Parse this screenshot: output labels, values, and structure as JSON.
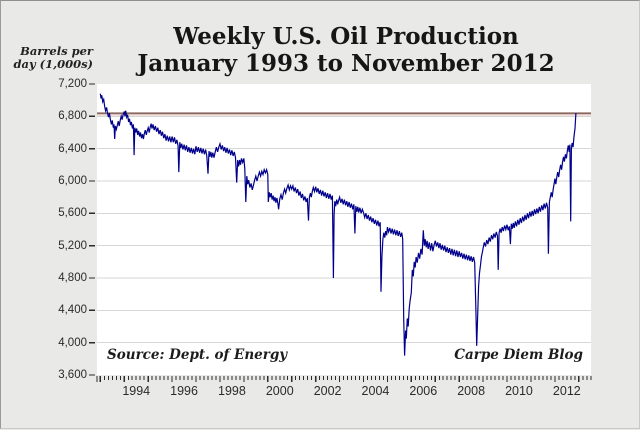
{
  "page": {
    "background": "#e9e9e7",
    "plot_background": "#ffffff"
  },
  "header": {
    "title_line1": "Weekly U.S. Oil Production",
    "title_line2": "January 1993 to November 2012"
  },
  "axis_unit_label": {
    "line1": "Barrels per",
    "line2": "day (1,000s)"
  },
  "footnotes": {
    "source": "Source: Dept. of Energy",
    "credit": "Carpe Diem Blog"
  },
  "chart_data": {
    "type": "line",
    "title": "Weekly U.S. Oil Production January 1993 to November 2012",
    "xlabel": "",
    "ylabel": "Barrels per day (1,000s)",
    "ylim": [
      3600,
      7200
    ],
    "xlim_years": [
      1992.86,
      2013.51
    ],
    "grid": true,
    "legend_position": "none",
    "line_color": "#00008b",
    "grid_color": "#d6d6d6",
    "tick_color": "#2b2b2b",
    "y_tick_values": [
      7200,
      6800,
      6400,
      6000,
      5600,
      5200,
      4800,
      4400,
      4000,
      3600
    ],
    "y_tick_labels": [
      "7,200",
      "6,800",
      "6,400",
      "6,000",
      "5,600",
      "5,200",
      "4,800",
      "4,400",
      "4,000",
      "3,600"
    ],
    "x_tick_years": [
      1994,
      1996,
      1998,
      2000,
      2002,
      2004,
      2006,
      2008,
      2010,
      2012
    ],
    "x_tick_labels": [
      "1994",
      "1996",
      "1998",
      "2000",
      "2002",
      "2004",
      "2006",
      "2008",
      "2010",
      "2012"
    ],
    "x_minor_ticks_per_year": 6,
    "reference_line": {
      "value": 6840,
      "color_dark": "#6f4a42",
      "color_light": "#dcc3bd"
    },
    "series": [
      {
        "name": "Weekly U.S. oil production (1,000s of barrels per day)",
        "points_flat": [
          1993.0,
          7080,
          1993.03,
          7020,
          1993.06,
          7060,
          1993.1,
          6980,
          1993.14,
          7010,
          1993.18,
          6920,
          1993.22,
          6870,
          1993.26,
          6910,
          1993.3,
          6840,
          1993.34,
          6790,
          1993.38,
          6840,
          1993.42,
          6760,
          1993.46,
          6700,
          1993.5,
          6750,
          1993.54,
          6660,
          1993.57,
          6700,
          1993.6,
          6520,
          1993.63,
          6680,
          1993.67,
          6640,
          1993.71,
          6690,
          1993.75,
          6740,
          1993.79,
          6680,
          1993.83,
          6750,
          1993.87,
          6800,
          1993.91,
          6760,
          1993.95,
          6820,
          1994.0,
          6860,
          1994.03,
          6800,
          1994.06,
          6870,
          1994.1,
          6790,
          1994.14,
          6820,
          1994.18,
          6730,
          1994.22,
          6770,
          1994.26,
          6690,
          1994.3,
          6730,
          1994.34,
          6650,
          1994.38,
          6700,
          1994.41,
          6320,
          1994.44,
          6660,
          1994.48,
          6600,
          1994.52,
          6650,
          1994.56,
          6570,
          1994.6,
          6620,
          1994.64,
          6550,
          1994.68,
          6600,
          1994.72,
          6530,
          1994.76,
          6580,
          1994.8,
          6520,
          1994.84,
          6590,
          1994.88,
          6630,
          1994.92,
          6570,
          1994.96,
          6620,
          1995.0,
          6660,
          1995.04,
          6600,
          1995.08,
          6660,
          1995.12,
          6710,
          1995.16,
          6650,
          1995.2,
          6700,
          1995.25,
          6630,
          1995.3,
          6680,
          1995.35,
          6610,
          1995.4,
          6660,
          1995.45,
          6580,
          1995.5,
          6630,
          1995.55,
          6560,
          1995.6,
          6610,
          1995.65,
          6530,
          1995.7,
          6580,
          1995.75,
          6500,
          1995.8,
          6560,
          1995.85,
          6490,
          1995.9,
          6550,
          1995.95,
          6480,
          1996.0,
          6550,
          1996.05,
          6480,
          1996.1,
          6540,
          1996.15,
          6460,
          1996.2,
          6510,
          1996.25,
          6430,
          1996.28,
          6110,
          1996.32,
          6480,
          1996.36,
          6410,
          1996.4,
          6460,
          1996.45,
          6390,
          1996.5,
          6450,
          1996.55,
          6380,
          1996.6,
          6440,
          1996.65,
          6360,
          1996.7,
          6420,
          1996.75,
          6350,
          1996.8,
          6410,
          1996.85,
          6340,
          1996.9,
          6400,
          1996.95,
          6330,
          1997.0,
          6430,
          1997.05,
          6360,
          1997.1,
          6420,
          1997.15,
          6350,
          1997.2,
          6410,
          1997.25,
          6340,
          1997.3,
          6400,
          1997.35,
          6330,
          1997.4,
          6390,
          1997.45,
          6310,
          1997.5,
          6090,
          1997.54,
          6370,
          1997.58,
          6300,
          1997.62,
          6360,
          1997.66,
          6290,
          1997.7,
          6350,
          1997.75,
          6290,
          1997.8,
          6360,
          1997.85,
          6420,
          1997.9,
          6360,
          1997.95,
          6420,
          1998.0,
          6460,
          1998.05,
          6390,
          1998.1,
          6440,
          1998.15,
          6370,
          1998.2,
          6420,
          1998.25,
          6350,
          1998.3,
          6410,
          1998.35,
          6340,
          1998.4,
          6390,
          1998.45,
          6320,
          1998.5,
          6380,
          1998.55,
          6310,
          1998.6,
          6360,
          1998.65,
          6290,
          1998.7,
          5980,
          1998.74,
          6260,
          1998.78,
          6180,
          1998.82,
          6260,
          1998.86,
          6200,
          1998.9,
          6280,
          1998.95,
          6230,
          1999.0,
          6280,
          1999.04,
          6150,
          1999.08,
          5740,
          1999.12,
          6060,
          1999.16,
          5960,
          1999.2,
          6010,
          1999.25,
          5920,
          1999.3,
          5970,
          1999.35,
          5890,
          1999.4,
          5950,
          1999.45,
          6010,
          1999.5,
          6060,
          1999.55,
          6000,
          1999.6,
          6060,
          1999.65,
          6110,
          1999.7,
          6060,
          1999.75,
          6120,
          1999.8,
          6080,
          1999.85,
          6140,
          1999.9,
          6100,
          1999.95,
          6140,
          2000.0,
          6080,
          2000.02,
          5740,
          2000.06,
          5860,
          2000.1,
          5800,
          2000.14,
          5850,
          2000.18,
          5770,
          2000.22,
          5820,
          2000.26,
          5750,
          2000.3,
          5800,
          2000.34,
          5730,
          2000.38,
          5790,
          2000.42,
          5720,
          2000.45,
          5650,
          2000.5,
          5780,
          2000.55,
          5830,
          2000.6,
          5770,
          2000.65,
          5850,
          2000.7,
          5900,
          2000.75,
          5850,
          2000.8,
          5910,
          2000.85,
          5950,
          2000.9,
          5890,
          2000.95,
          5940,
          2001.0,
          5900,
          2001.05,
          5940,
          2001.1,
          5870,
          2001.15,
          5920,
          2001.2,
          5850,
          2001.25,
          5900,
          2001.3,
          5820,
          2001.35,
          5870,
          2001.4,
          5790,
          2001.45,
          5840,
          2001.5,
          5760,
          2001.55,
          5810,
          2001.6,
          5740,
          2001.65,
          5790,
          2001.7,
          5510,
          2001.74,
          5800,
          2001.78,
          5850,
          2001.82,
          5800,
          2001.86,
          5870,
          2001.9,
          5920,
          2001.95,
          5870,
          2002.0,
          5930,
          2002.05,
          5860,
          2002.1,
          5910,
          2002.15,
          5840,
          2002.2,
          5890,
          2002.25,
          5820,
          2002.3,
          5880,
          2002.35,
          5810,
          2002.4,
          5860,
          2002.45,
          5790,
          2002.5,
          5850,
          2002.55,
          5780,
          2002.6,
          5840,
          2002.65,
          5770,
          2002.7,
          5820,
          2002.74,
          4800,
          2002.77,
          5580,
          2002.8,
          5750,
          2002.84,
          5690,
          2002.88,
          5770,
          2002.92,
          5710,
          2002.96,
          5760,
          2003.0,
          5800,
          2003.05,
          5730,
          2003.1,
          5780,
          2003.15,
          5710,
          2003.2,
          5770,
          2003.25,
          5700,
          2003.3,
          5750,
          2003.35,
          5680,
          2003.4,
          5740,
          2003.45,
          5670,
          2003.5,
          5720,
          2003.55,
          5650,
          2003.6,
          5710,
          2003.64,
          5350,
          2003.68,
          5690,
          2003.72,
          5620,
          2003.76,
          5680,
          2003.8,
          5610,
          2003.85,
          5670,
          2003.9,
          5600,
          2003.95,
          5650,
          2004.0,
          5610,
          2004.05,
          5550,
          2004.1,
          5600,
          2004.15,
          5530,
          2004.2,
          5580,
          2004.25,
          5510,
          2004.3,
          5560,
          2004.35,
          5490,
          2004.4,
          5540,
          2004.45,
          5470,
          2004.5,
          5520,
          2004.55,
          5450,
          2004.6,
          5510,
          2004.65,
          5440,
          2004.7,
          5490,
          2004.73,
          4630,
          2004.77,
          5060,
          2004.81,
          5280,
          2004.85,
          5360,
          2004.89,
          5300,
          2004.93,
          5380,
          2004.97,
          5330,
          2005.0,
          5430,
          2005.05,
          5370,
          2005.1,
          5420,
          2005.15,
          5350,
          2005.2,
          5410,
          2005.25,
          5340,
          2005.3,
          5400,
          2005.35,
          5330,
          2005.4,
          5390,
          2005.45,
          5320,
          2005.5,
          5380,
          2005.55,
          5310,
          2005.6,
          5360,
          2005.64,
          5280,
          2005.68,
          4300,
          2005.72,
          3840,
          2005.76,
          4150,
          2005.79,
          4050,
          2005.83,
          4300,
          2005.87,
          4200,
          2005.91,
          4420,
          2005.95,
          4520,
          2006.0,
          4620,
          2006.04,
          4900,
          2006.08,
          4820,
          2006.12,
          5000,
          2006.16,
          4930,
          2006.2,
          5060,
          2006.25,
          4990,
          2006.3,
          5110,
          2006.35,
          5040,
          2006.4,
          5160,
          2006.45,
          5090,
          2006.5,
          5390,
          2006.54,
          5200,
          2006.58,
          5280,
          2006.62,
          5180,
          2006.66,
          5260,
          2006.7,
          5160,
          2006.75,
          5240,
          2006.8,
          5140,
          2006.85,
          5230,
          2006.9,
          5130,
          2006.95,
          5210,
          2007.0,
          5260,
          2007.05,
          5190,
          2007.1,
          5240,
          2007.15,
          5170,
          2007.2,
          5230,
          2007.25,
          5150,
          2007.3,
          5210,
          2007.35,
          5140,
          2007.4,
          5200,
          2007.45,
          5120,
          2007.5,
          5180,
          2007.55,
          5110,
          2007.6,
          5170,
          2007.65,
          5090,
          2007.7,
          5160,
          2007.75,
          5080,
          2007.8,
          5150,
          2007.85,
          5070,
          2007.9,
          5140,
          2007.95,
          5060,
          2008.0,
          5130,
          2008.05,
          5060,
          2008.1,
          5110,
          2008.15,
          5040,
          2008.2,
          5100,
          2008.25,
          5030,
          2008.3,
          5090,
          2008.35,
          5020,
          2008.4,
          5080,
          2008.45,
          5010,
          2008.5,
          5070,
          2008.55,
          5000,
          2008.6,
          5060,
          2008.65,
          4990,
          2008.7,
          4400,
          2008.73,
          3960,
          2008.77,
          4310,
          2008.81,
          4700,
          2008.85,
          4860,
          2008.89,
          4960,
          2008.93,
          5060,
          2008.97,
          5120,
          2009.0,
          5170,
          2009.05,
          5240,
          2009.1,
          5190,
          2009.15,
          5270,
          2009.2,
          5220,
          2009.25,
          5300,
          2009.3,
          5250,
          2009.35,
          5330,
          2009.4,
          5280,
          2009.45,
          5350,
          2009.5,
          5300,
          2009.55,
          5370,
          2009.6,
          5320,
          2009.63,
          4900,
          2009.67,
          5360,
          2009.71,
          5410,
          2009.75,
          5360,
          2009.8,
          5430,
          2009.85,
          5380,
          2009.9,
          5450,
          2009.95,
          5400,
          2010.0,
          5460,
          2010.05,
          5390,
          2010.1,
          5440,
          2010.14,
          5220,
          2010.18,
          5470,
          2010.22,
          5410,
          2010.26,
          5480,
          2010.3,
          5420,
          2010.35,
          5500,
          2010.4,
          5440,
          2010.45,
          5520,
          2010.5,
          5460,
          2010.55,
          5540,
          2010.6,
          5480,
          2010.65,
          5560,
          2010.7,
          5500,
          2010.75,
          5580,
          2010.8,
          5520,
          2010.85,
          5600,
          2010.9,
          5540,
          2010.95,
          5620,
          2011.0,
          5560,
          2011.05,
          5630,
          2011.1,
          5570,
          2011.15,
          5650,
          2011.2,
          5590,
          2011.25,
          5660,
          2011.3,
          5600,
          2011.35,
          5680,
          2011.4,
          5620,
          2011.45,
          5700,
          2011.5,
          5640,
          2011.55,
          5720,
          2011.6,
          5660,
          2011.65,
          5730,
          2011.7,
          5670,
          2011.73,
          5100,
          2011.77,
          5740,
          2011.81,
          5800,
          2011.85,
          5860,
          2011.89,
          5800,
          2011.93,
          5900,
          2011.97,
          5970,
          2012.0,
          6030,
          2012.04,
          5960,
          2012.08,
          6050,
          2012.12,
          6110,
          2012.16,
          6050,
          2012.2,
          6140,
          2012.24,
          6200,
          2012.28,
          6140,
          2012.32,
          6230,
          2012.36,
          6300,
          2012.4,
          6240,
          2012.44,
          6330,
          2012.48,
          6280,
          2012.52,
          6370,
          2012.56,
          6440,
          2012.6,
          6360,
          2012.63,
          6450,
          2012.66,
          5500,
          2012.69,
          6400,
          2012.72,
          6470,
          2012.76,
          6420,
          2012.8,
          6550,
          2012.84,
          6650,
          2012.88,
          6840
        ]
      }
    ]
  }
}
